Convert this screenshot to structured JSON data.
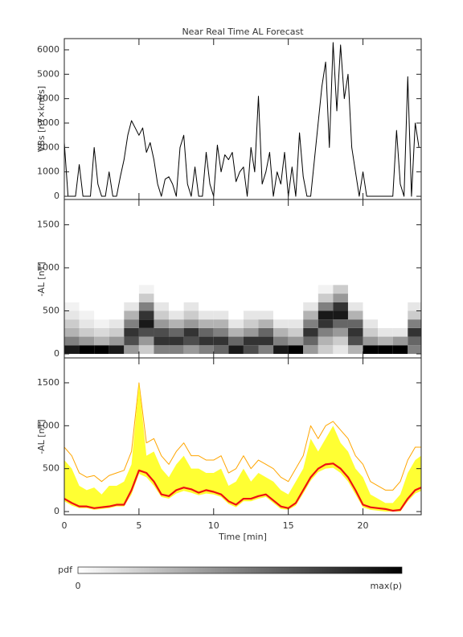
{
  "chart_data": [
    {
      "type": "line",
      "title": "Near Real Time AL Forecast",
      "ylabel": "VBs [nT×km/s]",
      "xlim": [
        0,
        23.9
      ],
      "xticks": [
        0,
        5,
        10,
        15,
        20
      ],
      "ylim": [
        -130,
        6460
      ],
      "yticks": [
        0,
        1000,
        2000,
        3000,
        4000,
        5000,
        6000
      ],
      "x": [
        0,
        0.25,
        0.5,
        0.75,
        1,
        1.25,
        1.5,
        1.75,
        2,
        2.25,
        2.5,
        2.75,
        3,
        3.25,
        3.5,
        3.75,
        4,
        4.25,
        4.5,
        4.75,
        5,
        5.25,
        5.5,
        5.75,
        6,
        6.25,
        6.5,
        6.75,
        7,
        7.25,
        7.5,
        7.75,
        8,
        8.25,
        8.5,
        8.75,
        9,
        9.25,
        9.5,
        9.75,
        10,
        10.25,
        10.5,
        10.75,
        11,
        11.25,
        11.5,
        11.75,
        12,
        12.25,
        12.5,
        12.75,
        13,
        13.25,
        13.5,
        13.75,
        14,
        14.25,
        14.5,
        14.75,
        15,
        15.25,
        15.5,
        15.75,
        16,
        16.25,
        16.5,
        16.75,
        17,
        17.25,
        17.5,
        17.75,
        18,
        18.25,
        18.5,
        18.75,
        19,
        19.25,
        19.5,
        19.75,
        20,
        20.25,
        20.5,
        20.75,
        21,
        21.25,
        21.5,
        21.75,
        22,
        22.25,
        22.5,
        22.75,
        23,
        23.25,
        23.5,
        23.75
      ],
      "series": [
        {
          "color": "#000000",
          "values": [
            2200,
            0,
            0,
            0,
            1300,
            0,
            0,
            0,
            2000,
            500,
            0,
            0,
            1000,
            0,
            0,
            800,
            1500,
            2500,
            3100,
            2800,
            2500,
            2800,
            1800,
            2200,
            1500,
            500,
            0,
            700,
            800,
            500,
            0,
            2000,
            2500,
            500,
            0,
            1200,
            0,
            0,
            1800,
            500,
            0,
            2100,
            1000,
            1700,
            1500,
            1800,
            600,
            1000,
            1200,
            0,
            2000,
            1000,
            4100,
            500,
            1000,
            1800,
            0,
            1000,
            500,
            1800,
            0,
            1200,
            0,
            2600,
            800,
            0,
            0,
            1500,
            3000,
            4500,
            5500,
            2000,
            6300,
            3500,
            6200,
            4000,
            5000,
            2000,
            1000,
            0,
            1000,
            0,
            0,
            0,
            0,
            0,
            0,
            0,
            0,
            2700,
            500,
            0,
            4900,
            0,
            3000,
            2000
          ]
        }
      ]
    },
    {
      "type": "heatmap",
      "ylabel": "-AL [nT]",
      "xlim": [
        0,
        23.9
      ],
      "xticks": [
        0,
        5,
        10,
        15,
        20
      ],
      "ylim": [
        -47,
        1794
      ],
      "yticks": [
        0,
        500,
        1000,
        1500
      ],
      "xbins": [
        0,
        1,
        2,
        3,
        4,
        5,
        6,
        7,
        8,
        9,
        10,
        11,
        12,
        13,
        14,
        15,
        16,
        17,
        18,
        19,
        20,
        21,
        22,
        23,
        24
      ],
      "ybins": [
        0,
        100,
        200,
        300,
        400,
        500,
        600,
        700,
        800
      ],
      "z": [
        [
          0.9,
          0.5,
          0.3,
          0.2,
          0.1,
          0.05,
          0,
          0
        ],
        [
          1,
          0.4,
          0.2,
          0.1,
          0.05,
          0,
          0,
          0
        ],
        [
          1,
          0.3,
          0.15,
          0.05,
          0,
          0,
          0,
          0
        ],
        [
          0.9,
          0.4,
          0.2,
          0.1,
          0,
          0,
          0,
          0
        ],
        [
          0.4,
          0.7,
          0.8,
          0.5,
          0.3,
          0.1,
          0,
          0
        ],
        [
          0.2,
          0.4,
          0.7,
          0.9,
          0.8,
          0.5,
          0.2,
          0.05
        ],
        [
          0.5,
          0.8,
          0.7,
          0.4,
          0.2,
          0.1,
          0,
          0
        ],
        [
          0.5,
          0.8,
          0.6,
          0.3,
          0.1,
          0,
          0,
          0
        ],
        [
          0.4,
          0.7,
          0.8,
          0.4,
          0.2,
          0.1,
          0,
          0
        ],
        [
          0.5,
          0.8,
          0.6,
          0.3,
          0.1,
          0,
          0,
          0
        ],
        [
          0.6,
          0.8,
          0.5,
          0.3,
          0.1,
          0,
          0,
          0
        ],
        [
          0.9,
          0.6,
          0.3,
          0.1,
          0,
          0,
          0,
          0
        ],
        [
          0.7,
          0.8,
          0.4,
          0.2,
          0.1,
          0,
          0,
          0
        ],
        [
          0.5,
          0.8,
          0.6,
          0.3,
          0.1,
          0,
          0,
          0
        ],
        [
          0.9,
          0.5,
          0.3,
          0.1,
          0,
          0,
          0,
          0
        ],
        [
          1,
          0.4,
          0.2,
          0.1,
          0,
          0,
          0,
          0
        ],
        [
          0.4,
          0.6,
          0.8,
          0.5,
          0.3,
          0.1,
          0,
          0
        ],
        [
          0.2,
          0.3,
          0.5,
          0.8,
          0.9,
          0.5,
          0.2,
          0.05
        ],
        [
          0.1,
          0.2,
          0.4,
          0.6,
          0.9,
          0.8,
          0.4,
          0.2
        ],
        [
          0.3,
          0.7,
          0.8,
          0.6,
          0.3,
          0.1,
          0,
          0
        ],
        [
          1,
          0.4,
          0.2,
          0.1,
          0,
          0,
          0,
          0
        ],
        [
          1,
          0.3,
          0.1,
          0,
          0,
          0,
          0,
          0
        ],
        [
          1,
          0.4,
          0.1,
          0,
          0,
          0,
          0,
          0
        ],
        [
          0.5,
          0.6,
          0.8,
          0.5,
          0.2,
          0.1,
          0,
          0
        ]
      ]
    },
    {
      "type": "line",
      "ylabel": "-AL [nT]",
      "xlabel": "Time [min]",
      "xlim": [
        0,
        23.9
      ],
      "xticks": [
        0,
        5,
        10,
        15,
        20
      ],
      "ylim": [
        -37,
        1790
      ],
      "yticks": [
        0,
        500,
        1000,
        1500
      ],
      "x": [
        0,
        0.5,
        1,
        1.5,
        2,
        2.5,
        3,
        3.5,
        4,
        4.5,
        5,
        5.5,
        6,
        6.5,
        7,
        7.5,
        8,
        8.5,
        9,
        9.5,
        10,
        10.5,
        11,
        11.5,
        12,
        12.5,
        13,
        13.5,
        14,
        14.5,
        15,
        15.5,
        16,
        16.5,
        17,
        17.5,
        18,
        18.5,
        19,
        19.5,
        20,
        20.5,
        21,
        21.5,
        22,
        22.5,
        23,
        23.5,
        23.9
      ],
      "series": [
        {
          "color": "#ffa500",
          "values": [
            750,
            650,
            450,
            400,
            420,
            350,
            420,
            450,
            480,
            700,
            1500,
            800,
            850,
            650,
            550,
            700,
            800,
            650,
            650,
            600,
            600,
            650,
            450,
            500,
            650,
            500,
            600,
            550,
            500,
            400,
            350,
            500,
            650,
            1000,
            850,
            1000,
            1050,
            950,
            850,
            650,
            550,
            350,
            300,
            250,
            250,
            350,
            600,
            750,
            750
          ]
        },
        {
          "color": "#ffff33",
          "lower": [
            120,
            70,
            40,
            40,
            20,
            30,
            40,
            60,
            60,
            200,
            440,
            400,
            300,
            170,
            150,
            210,
            240,
            220,
            190,
            210,
            200,
            170,
            90,
            50,
            120,
            120,
            150,
            170,
            100,
            30,
            20,
            70,
            210,
            360,
            460,
            500,
            510,
            450,
            350,
            200,
            50,
            20,
            10,
            0,
            0,
            0,
            120,
            210,
            240
          ],
          "upper": [
            600,
            500,
            300,
            250,
            280,
            200,
            300,
            300,
            350,
            550,
            1500,
            650,
            700,
            500,
            400,
            550,
            650,
            500,
            500,
            450,
            450,
            500,
            300,
            350,
            500,
            350,
            450,
            400,
            350,
            250,
            200,
            350,
            500,
            850,
            700,
            850,
            1000,
            800,
            700,
            500,
            400,
            200,
            150,
            100,
            100,
            200,
            450,
            600,
            650
          ]
        },
        {
          "color": "#ee1111",
          "values": [
            150,
            100,
            60,
            60,
            40,
            50,
            60,
            80,
            80,
            250,
            480,
            450,
            350,
            200,
            180,
            250,
            280,
            260,
            220,
            250,
            230,
            200,
            120,
            80,
            150,
            150,
            180,
            200,
            130,
            60,
            40,
            100,
            250,
            400,
            500,
            550,
            560,
            500,
            400,
            250,
            80,
            50,
            40,
            30,
            10,
            20,
            150,
            250,
            280
          ]
        }
      ]
    }
  ],
  "colorbar": {
    "label": "pdf",
    "min_label": "0",
    "max_label": "max(p)",
    "colors": [
      "#ffffff",
      "#000000"
    ]
  }
}
